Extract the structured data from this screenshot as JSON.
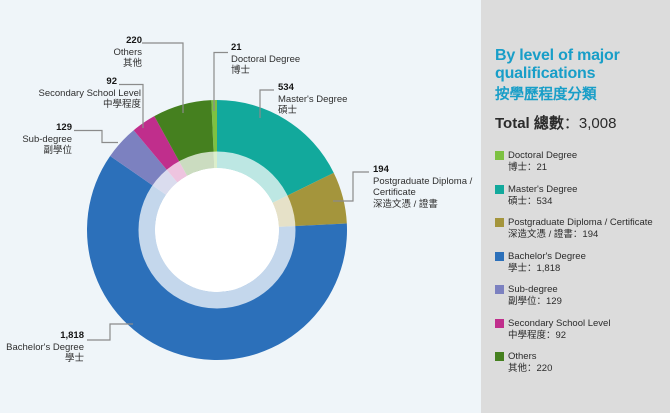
{
  "panel": {
    "title_en": "By level of major qualifications",
    "title_zh": "按學歷程度分類",
    "total_label_en": "Total",
    "total_label_zh": "總數",
    "total_separator": "：",
    "total_value": "3,008"
  },
  "chart_data": {
    "type": "pie",
    "subtype": "donut",
    "title": "By level of major qualifications 按學歷程度分類",
    "total": 3008,
    "start_angle_deg": -2.513,
    "direction": "clockwise-from-top",
    "legend_position": "right",
    "background_color": "#EFF5F9",
    "panel_color": "#DCDCDC",
    "accent_color": "#189EC8",
    "segments": [
      {
        "label_en": "Doctoral Degree",
        "label_zh": "博士",
        "value": 21,
        "display_value": "21",
        "legend_line": "博士：21",
        "color": "#7DC142"
      },
      {
        "label_en": "Master's Degree",
        "label_zh": "碩士",
        "value": 534,
        "display_value": "534",
        "legend_line": "碩士：534",
        "color": "#12A99C"
      },
      {
        "label_en": "Postgraduate Diploma / Certificate",
        "label_zh": "深造文憑 / 證書",
        "value": 194,
        "display_value": "194",
        "legend_line": "深造文憑 / 證書：194",
        "color": "#A4953C"
      },
      {
        "label_en": "Bachelor's Degree",
        "label_zh": "學士",
        "value": 1818,
        "display_value": "1,818",
        "legend_line": "學士：1,818",
        "color": "#2C70BA"
      },
      {
        "label_en": "Sub-degree",
        "label_zh": "副學位",
        "value": 129,
        "display_value": "129",
        "legend_line": "副學位：129",
        "color": "#7C81C0"
      },
      {
        "label_en": "Secondary School Level",
        "label_zh": "中學程度",
        "value": 92,
        "display_value": "92",
        "legend_line": "中學程度：92",
        "color": "#C02E8C"
      },
      {
        "label_en": "Others",
        "label_zh": "其他",
        "value": 220,
        "display_value": "220",
        "legend_line": "其他：220",
        "color": "#45801F"
      }
    ]
  }
}
